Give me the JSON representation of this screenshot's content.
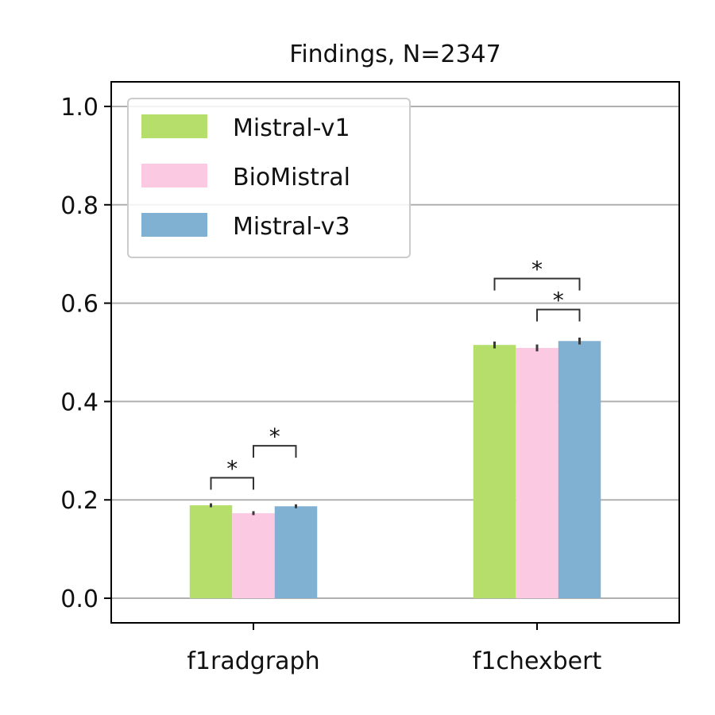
{
  "chart_data": {
    "type": "bar",
    "title": "Findings, N=2347",
    "xlabel": "",
    "ylabel": "",
    "categories": [
      "f1radgraph",
      "f1chexbert"
    ],
    "series": [
      {
        "name": "Mistral-v1",
        "values": [
          0.189,
          0.515
        ],
        "errors": [
          0.004,
          0.007
        ],
        "color": "#b5df6a"
      },
      {
        "name": "BioMistral",
        "values": [
          0.173,
          0.509
        ],
        "errors": [
          0.004,
          0.007
        ],
        "color": "#fcc9e3"
      },
      {
        "name": "Mistral-v3",
        "values": [
          0.187,
          0.523
        ],
        "errors": [
          0.004,
          0.007
        ],
        "color": "#80b1d3"
      }
    ],
    "ylim": [
      -0.05,
      1.05
    ],
    "yticks": [
      0.0,
      0.2,
      0.4,
      0.6,
      0.8,
      1.0
    ],
    "ytick_labels": [
      "0.0",
      "0.2",
      "0.4",
      "0.6",
      "0.8",
      "1.0"
    ],
    "grid": "horizontal",
    "legend_position": "top-left",
    "significance": [
      {
        "category": 0,
        "from_series": 0,
        "to_series": 1,
        "label": "*",
        "y": 0.245
      },
      {
        "category": 0,
        "from_series": 1,
        "to_series": 2,
        "label": "*",
        "y": 0.31
      },
      {
        "category": 1,
        "from_series": 0,
        "to_series": 2,
        "label": "*",
        "y": 0.65
      },
      {
        "category": 1,
        "from_series": 1,
        "to_series": 2,
        "label": "*",
        "y": 0.587
      }
    ]
  }
}
